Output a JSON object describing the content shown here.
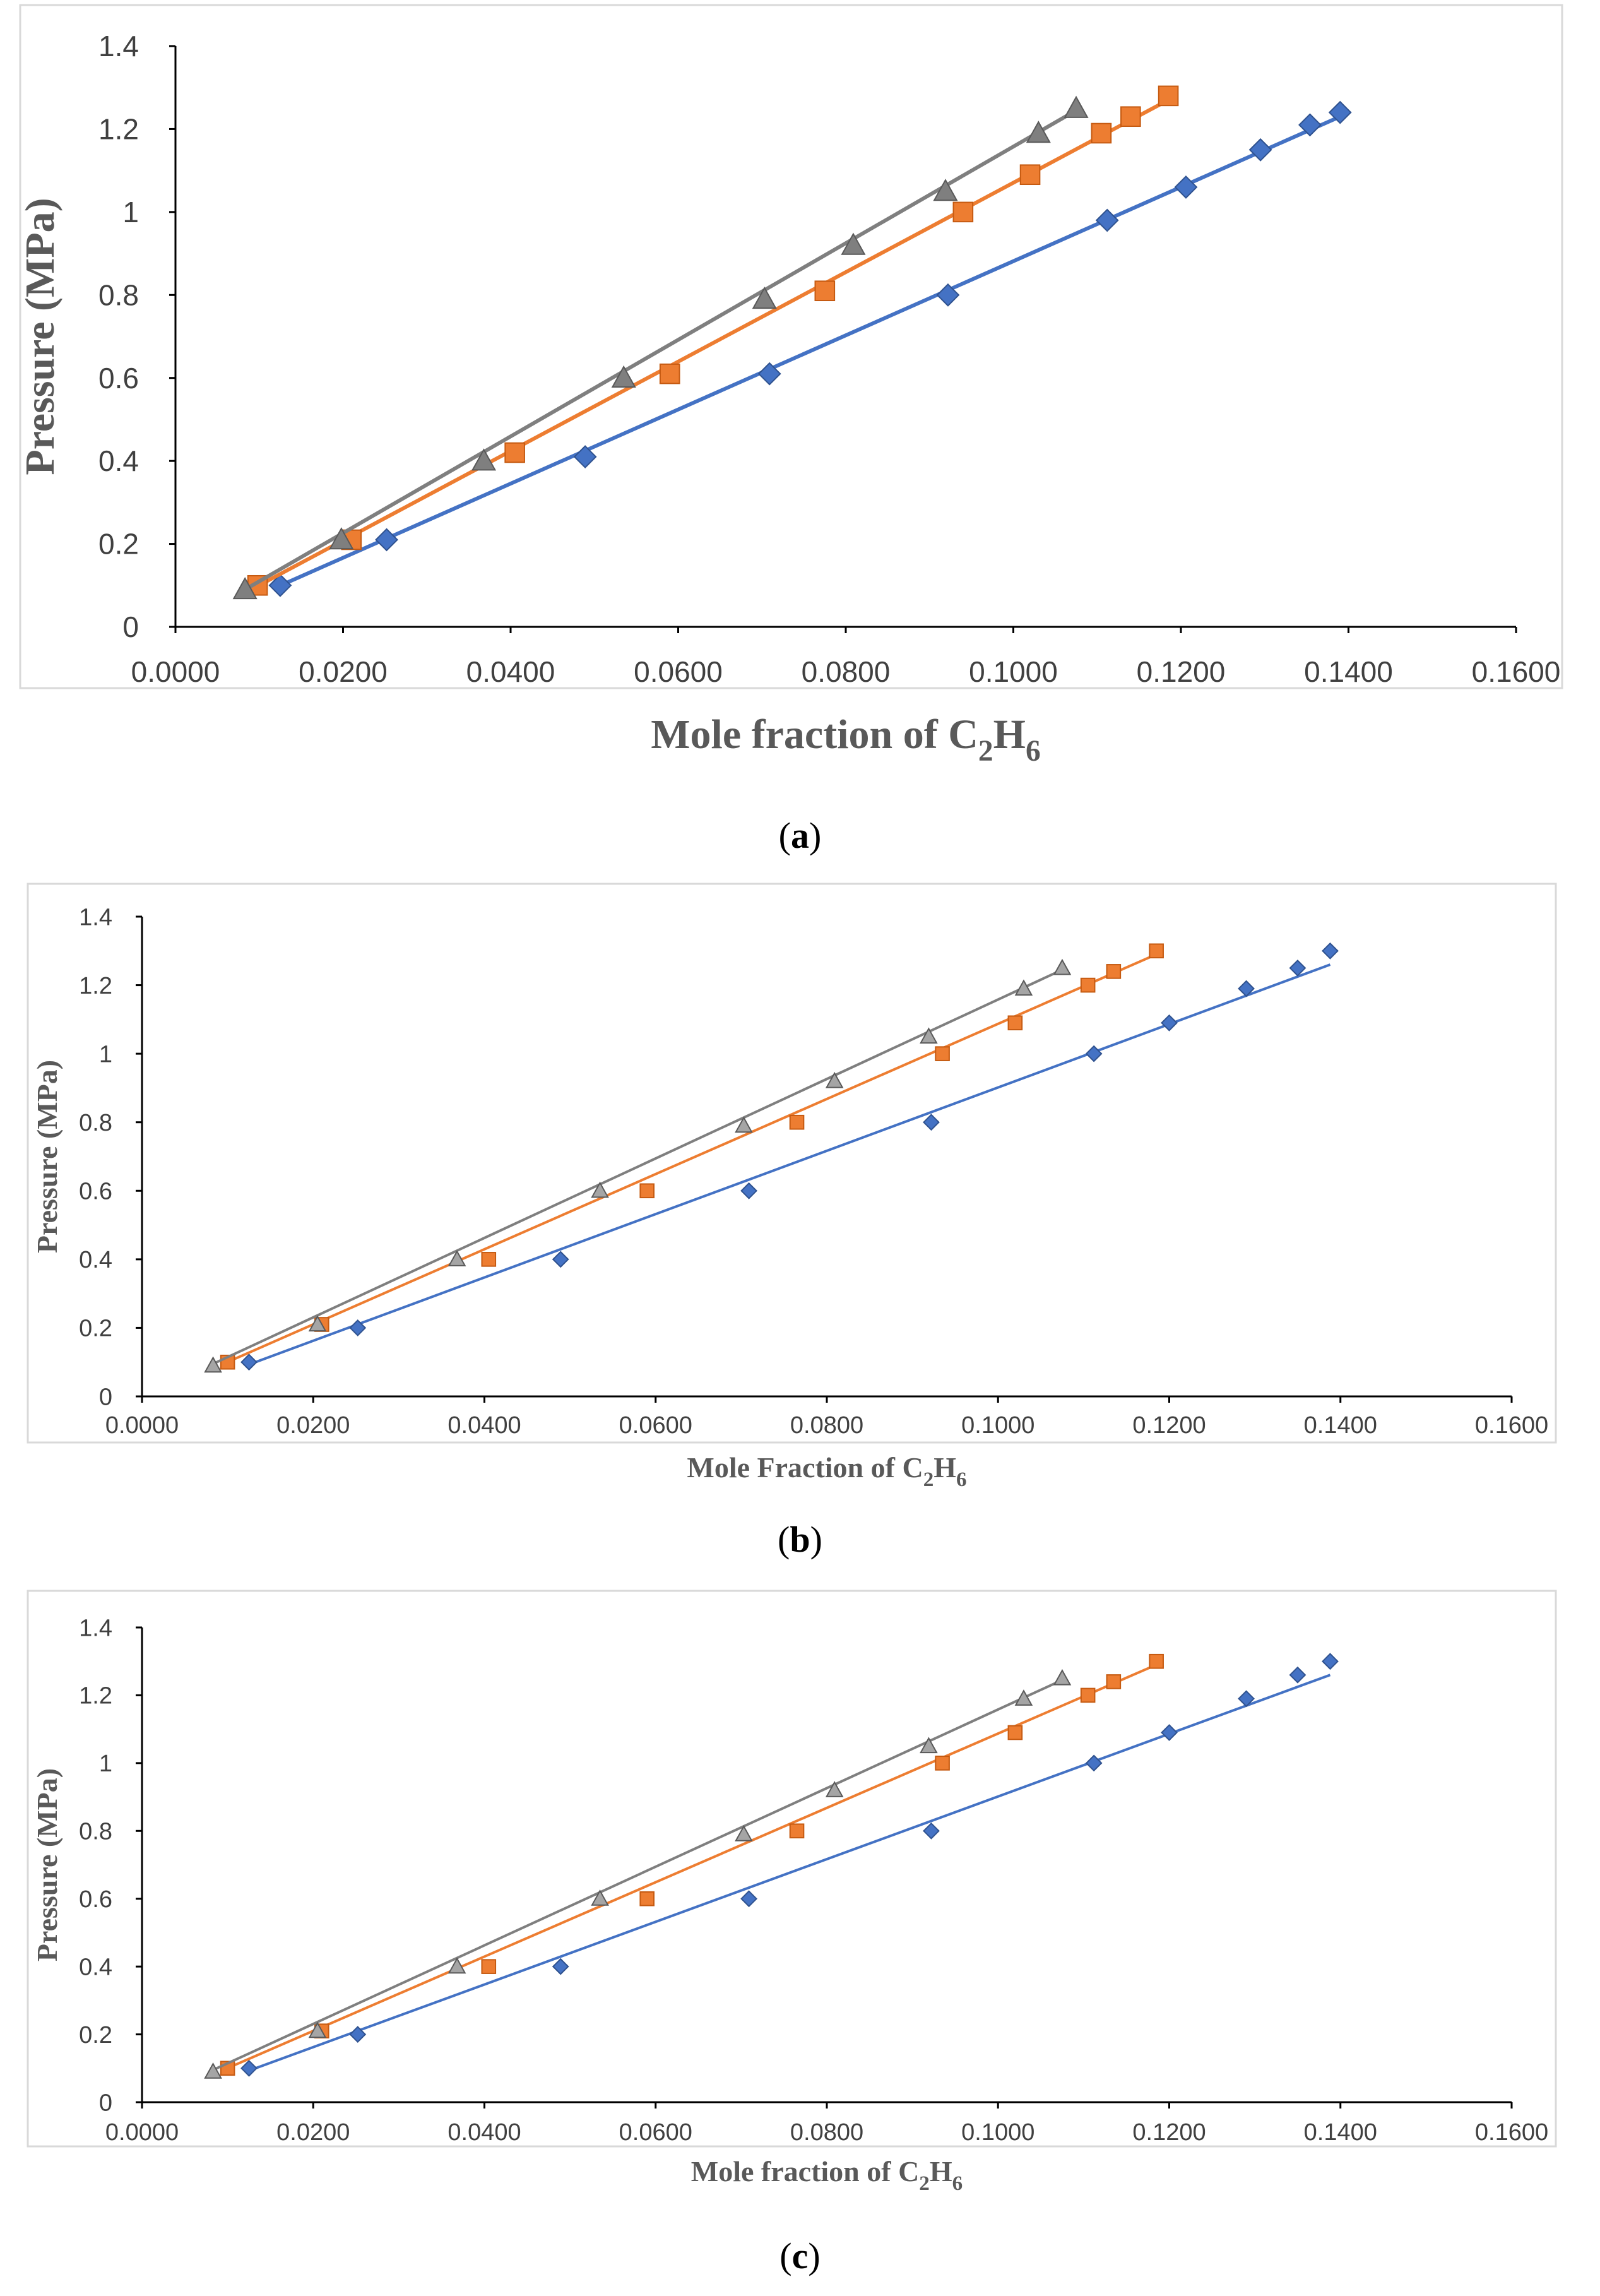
{
  "figure": {
    "panels": [
      {
        "caption_open": "(",
        "caption_letter": "a",
        "caption_close": ")"
      },
      {
        "caption_open": "(",
        "caption_letter": "b",
        "caption_close": ")"
      },
      {
        "caption_open": "(",
        "caption_letter": "c",
        "caption_close": ")"
      }
    ]
  },
  "chart_data": [
    {
      "type": "scatter",
      "panel": "a",
      "xlabel_main": "Mole fraction of C",
      "xlabel_sub1": "2",
      "xlabel_mid": "H",
      "xlabel_sub2": "6",
      "ylabel": "Pressure (MPa)",
      "xlim": [
        0,
        0.16
      ],
      "ylim": [
        0,
        1.4
      ],
      "x_ticks": [
        "0.0000",
        "0.0200",
        "0.0400",
        "0.0600",
        "0.0800",
        "0.1000",
        "0.1200",
        "0.1400",
        "0.1600"
      ],
      "y_ticks": [
        "0",
        "0.2",
        "0.4",
        "0.6",
        "0.8",
        "1",
        "1.2",
        "1.4"
      ],
      "grid": false,
      "series": [
        {
          "name": "blue-diamonds",
          "marker": "diamond",
          "color": "#4472C4",
          "x": [
            0.0125,
            0.0252,
            0.0489,
            0.0709,
            0.0922,
            0.1112,
            0.1206,
            0.1295,
            0.1354,
            0.139
          ],
          "y": [
            0.1,
            0.21,
            0.41,
            0.61,
            0.8,
            0.98,
            1.06,
            1.15,
            1.21,
            1.24
          ],
          "trend": [
            [
              0.0125,
              0.0995
            ],
            [
              0.139,
              1.23
            ]
          ]
        },
        {
          "name": "orange-squares",
          "marker": "square",
          "color": "#ED7D31",
          "x": [
            0.0098,
            0.021,
            0.0405,
            0.059,
            0.0775,
            0.094,
            0.102,
            0.1105,
            0.114,
            0.1185
          ],
          "y": [
            0.1,
            0.21,
            0.42,
            0.61,
            0.81,
            1.0,
            1.09,
            1.19,
            1.23,
            1.28
          ],
          "trend": [
            [
              0.0095,
              0.095
            ],
            [
              0.1185,
              1.27
            ]
          ]
        },
        {
          "name": "gray-triangles",
          "marker": "triangle",
          "color": "#7F7F7F",
          "x": [
            0.0083,
            0.0198,
            0.0368,
            0.0535,
            0.0703,
            0.0809,
            0.0919,
            0.103,
            0.1075
          ],
          "y": [
            0.09,
            0.21,
            0.4,
            0.6,
            0.79,
            0.92,
            1.05,
            1.19,
            1.25
          ],
          "trend": [
            [
              0.0083,
              0.09
            ],
            [
              0.1075,
              1.245
            ]
          ]
        }
      ]
    },
    {
      "type": "scatter",
      "panel": "b",
      "xlabel_main": "Mole Fraction of C",
      "xlabel_sub1": "2",
      "xlabel_mid": "H",
      "xlabel_sub2": "6",
      "ylabel": "Pressure (MPa)",
      "xlim": [
        0,
        0.16
      ],
      "ylim": [
        0,
        1.4
      ],
      "x_ticks": [
        "0.0000",
        "0.0200",
        "0.0400",
        "0.0600",
        "0.0800",
        "0.1000",
        "0.1200",
        "0.1400",
        "0.1600"
      ],
      "y_ticks": [
        "0",
        "0.2",
        "0.4",
        "0.6",
        "0.8",
        "1",
        "1.2",
        "1.4"
      ],
      "grid": false,
      "series": [
        {
          "name": "blue-diamonds",
          "marker": "diamond",
          "color": "#4472C4",
          "x": [
            0.0125,
            0.0252,
            0.0489,
            0.0709,
            0.0922,
            0.1112,
            0.12,
            0.129,
            0.135,
            0.1388
          ],
          "y": [
            0.1,
            0.2,
            0.4,
            0.6,
            0.8,
            1.0,
            1.09,
            1.19,
            1.25,
            1.3
          ],
          "trend": [
            [
              0.0125,
              0.093
            ],
            [
              0.1388,
              1.26
            ]
          ]
        },
        {
          "name": "orange-squares",
          "marker": "square",
          "color": "#ED7D31",
          "x": [
            0.01,
            0.021,
            0.0405,
            0.059,
            0.0765,
            0.0935,
            0.102,
            0.1105,
            0.1135,
            0.1185
          ],
          "y": [
            0.1,
            0.21,
            0.4,
            0.6,
            0.8,
            1.0,
            1.09,
            1.2,
            1.24,
            1.3
          ],
          "trend": [
            [
              0.0095,
              0.095
            ],
            [
              0.1185,
              1.29
            ]
          ]
        },
        {
          "name": "gray-triangles",
          "marker": "triangle",
          "color": "#A5A5A5",
          "line_color": "#7F7F7F",
          "x": [
            0.0083,
            0.0205,
            0.0368,
            0.0535,
            0.0703,
            0.0809,
            0.0919,
            0.103,
            0.1075
          ],
          "y": [
            0.09,
            0.21,
            0.4,
            0.6,
            0.79,
            0.92,
            1.05,
            1.19,
            1.25
          ],
          "trend": [
            [
              0.0083,
              0.095
            ],
            [
              0.1075,
              1.245
            ]
          ]
        }
      ]
    },
    {
      "type": "scatter",
      "panel": "c",
      "xlabel_main": "Mole fraction of C",
      "xlabel_sub1": "2",
      "xlabel_mid": "H",
      "xlabel_sub2": "6",
      "ylabel": "Pressure (MPa)",
      "xlim": [
        0,
        0.16
      ],
      "ylim": [
        0,
        1.4
      ],
      "x_ticks": [
        "0.0000",
        "0.0200",
        "0.0400",
        "0.0600",
        "0.0800",
        "0.1000",
        "0.1200",
        "0.1400",
        "0.1600"
      ],
      "y_ticks": [
        "0",
        "0.2",
        "0.4",
        "0.6",
        "0.8",
        "1",
        "1.2",
        "1.4"
      ],
      "grid": false,
      "series": [
        {
          "name": "blue-diamonds",
          "marker": "diamond",
          "color": "#4472C4",
          "x": [
            0.0125,
            0.0252,
            0.0489,
            0.0709,
            0.0922,
            0.1112,
            0.12,
            0.129,
            0.135,
            0.1388
          ],
          "y": [
            0.1,
            0.2,
            0.4,
            0.6,
            0.8,
            1.0,
            1.09,
            1.19,
            1.26,
            1.3
          ],
          "trend": [
            [
              0.0125,
              0.093
            ],
            [
              0.1388,
              1.26
            ]
          ]
        },
        {
          "name": "orange-squares",
          "marker": "square",
          "color": "#ED7D31",
          "x": [
            0.01,
            0.021,
            0.0405,
            0.059,
            0.0765,
            0.0935,
            0.102,
            0.1105,
            0.1135,
            0.1185
          ],
          "y": [
            0.1,
            0.21,
            0.4,
            0.6,
            0.8,
            1.0,
            1.09,
            1.2,
            1.24,
            1.3
          ],
          "trend": [
            [
              0.0095,
              0.095
            ],
            [
              0.1185,
              1.29
            ]
          ]
        },
        {
          "name": "gray-triangles",
          "marker": "triangle",
          "color": "#A5A5A5",
          "line_color": "#7F7F7F",
          "x": [
            0.0083,
            0.0205,
            0.0368,
            0.0535,
            0.0703,
            0.0809,
            0.0919,
            0.103,
            0.1075
          ],
          "y": [
            0.09,
            0.21,
            0.4,
            0.6,
            0.79,
            0.92,
            1.05,
            1.19,
            1.25
          ],
          "trend": [
            [
              0.0083,
              0.095
            ],
            [
              0.1075,
              1.245
            ]
          ]
        }
      ]
    }
  ]
}
